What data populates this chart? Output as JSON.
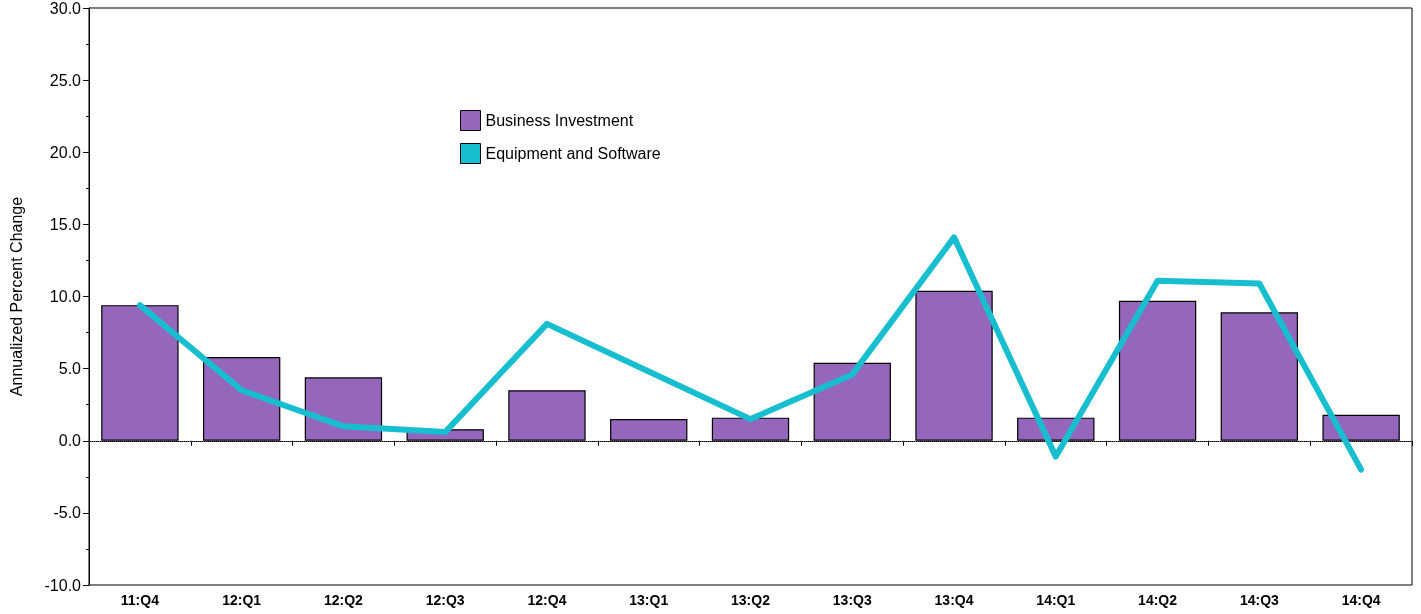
{
  "chart_data": {
    "type": "bar",
    "ylabel": "Annualized Percent Change",
    "categories": [
      "11:Q4",
      "12:Q1",
      "12:Q2",
      "12:Q3",
      "12:Q4",
      "13:Q1",
      "13:Q2",
      "13:Q3",
      "13:Q4",
      "14:Q1",
      "14:Q2",
      "14:Q3",
      "14:Q4"
    ],
    "series": [
      {
        "name": "Business Investment",
        "color": "#9467bd",
        "values": [
          9.4,
          5.8,
          4.4,
          0.8,
          3.5,
          1.5,
          1.6,
          5.4,
          10.4,
          1.6,
          9.7,
          8.9,
          1.8
        ]
      },
      {
        "name": "Equipment and Software",
        "type": "line",
        "color": "#17becf",
        "values": [
          9.4,
          3.5,
          1.0,
          0.6,
          8.1,
          4.8,
          1.5,
          4.6,
          14.1,
          -1.1,
          11.1,
          10.9,
          -2.0
        ]
      }
    ],
    "ylim": [
      -10,
      30
    ],
    "yticks": [
      {
        "value": -10,
        "label": "-10.0"
      },
      {
        "value": -5,
        "label": "-5.0"
      },
      {
        "value": 0,
        "label": "0.0"
      },
      {
        "value": 5,
        "label": "5.0"
      },
      {
        "value": 10,
        "label": "10.0"
      },
      {
        "value": 15,
        "label": "15.0"
      },
      {
        "value": 20,
        "label": "20.0"
      },
      {
        "value": 25,
        "label": "25.0"
      },
      {
        "value": 30,
        "label": "30.0"
      }
    ],
    "ref_lines": [
      {
        "axis": "y",
        "value": 0,
        "color": "#555555",
        "line_style": "dotted"
      }
    ],
    "grid": false,
    "legend": "top",
    "marker": "none",
    "line_style": "solid"
  }
}
